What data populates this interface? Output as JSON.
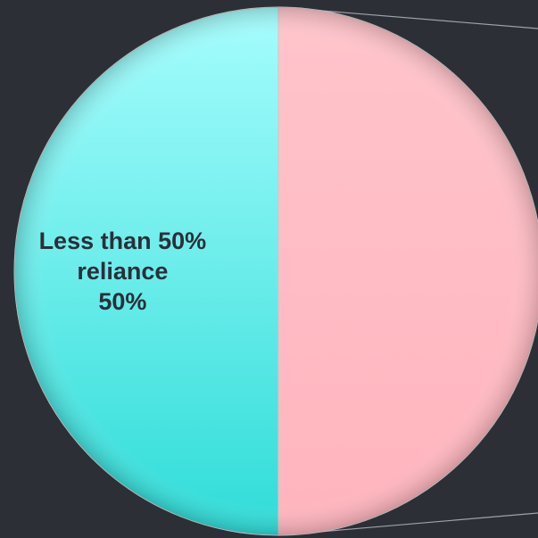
{
  "chart_data": {
    "type": "pie",
    "title": "",
    "slices": [
      {
        "label_lines": [
          "Less than 50%",
          "reliance"
        ],
        "value_label": "50%",
        "value": 50,
        "color": "#5cecec"
      },
      {
        "label_lines": [],
        "value_label": "",
        "value": 50,
        "color": "#ffb8c0"
      }
    ]
  }
}
